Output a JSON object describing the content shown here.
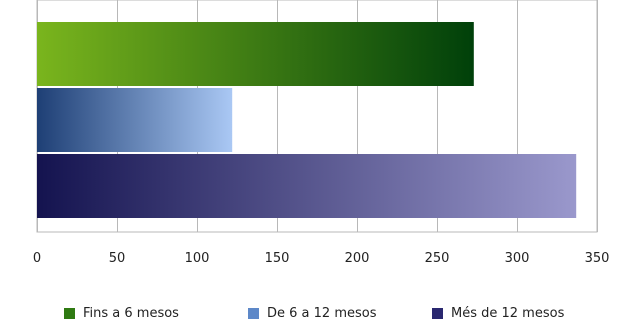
{
  "chart_data": {
    "type": "bar",
    "orientation": "horizontal",
    "title": "",
    "xlabel": "",
    "ylabel": "",
    "xlim": [
      0,
      350
    ],
    "x_ticks": [
      0,
      50,
      100,
      150,
      200,
      250,
      300,
      350
    ],
    "grid": true,
    "legend_position": "bottom",
    "series": [
      {
        "name": "Fins a 6 mesos",
        "values": [
          273
        ],
        "color_start": "#7ab51d",
        "color_end": "#00400a",
        "swatch": "#2f7a12"
      },
      {
        "name": "De 6 a 12 mesos",
        "values": [
          122
        ],
        "color_start": "#1e3f75",
        "color_end": "#aac8f4",
        "swatch": "#5d88c8"
      },
      {
        "name": "Més de 12 mesos",
        "values": [
          337
        ],
        "color_start": "#14134f",
        "color_end": "#9a98cc",
        "swatch": "#2a2870"
      }
    ]
  }
}
